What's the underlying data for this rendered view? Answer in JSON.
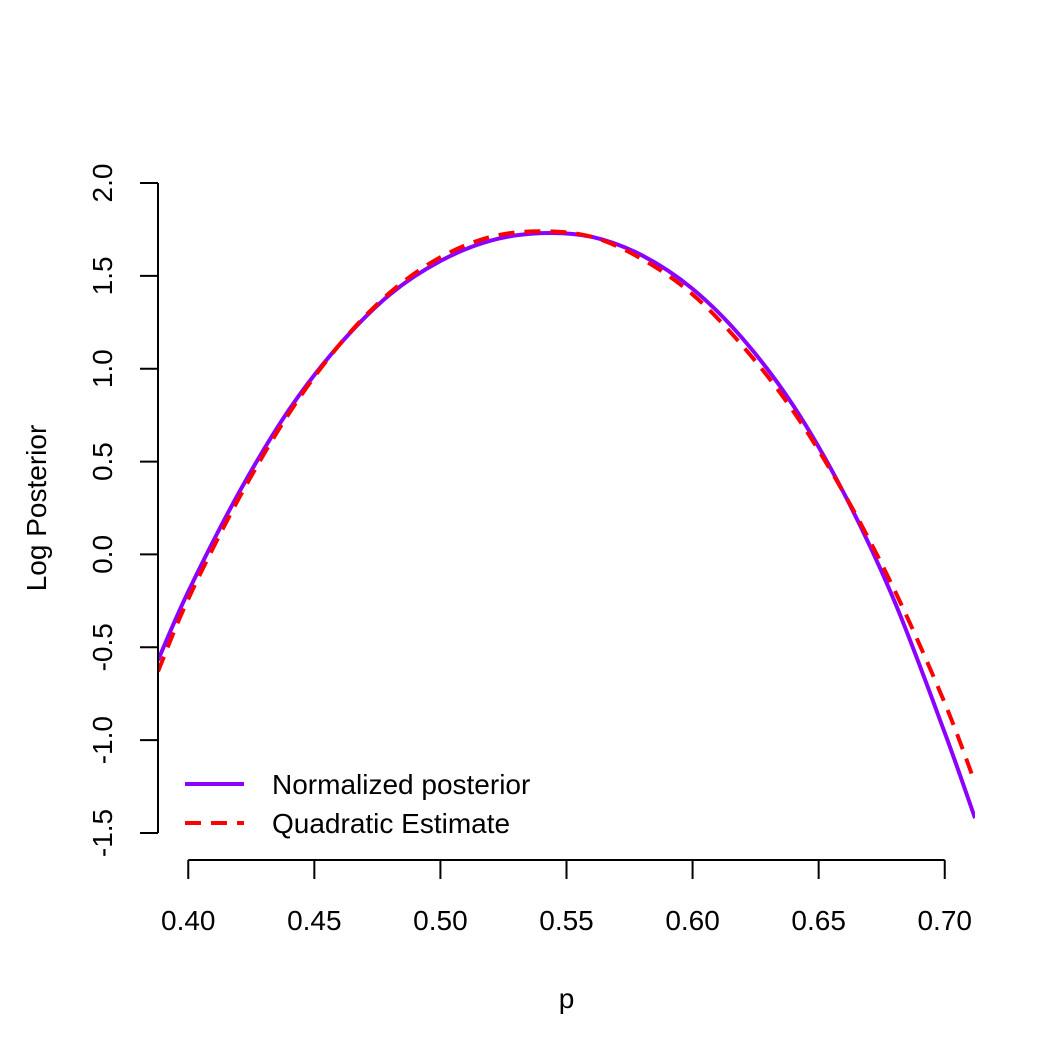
{
  "chart_data": {
    "type": "line",
    "title": "",
    "xlabel": "p",
    "ylabel": "Log Posterior",
    "xlim": [
      0.388,
      0.712
    ],
    "ylim": [
      -1.5,
      2.0
    ],
    "x_ticks": [
      0.4,
      0.45,
      0.5,
      0.55,
      0.6,
      0.65,
      0.7
    ],
    "x_tick_labels": [
      "0.40",
      "0.45",
      "0.50",
      "0.55",
      "0.60",
      "0.65",
      "0.70"
    ],
    "y_ticks": [
      -1.5,
      -1.0,
      -0.5,
      0.0,
      0.5,
      1.0,
      1.5,
      2.0
    ],
    "y_tick_labels": [
      "-1.5",
      "-1.0",
      "-0.5",
      "0.0",
      "0.5",
      "1.0",
      "1.5",
      "2.0"
    ],
    "grid": false,
    "legend": {
      "position": "bottom-left"
    },
    "series": [
      {
        "name": "Normalized posterior",
        "color": "#8B00FF",
        "style": "solid",
        "x": [
          0.388,
          0.4,
          0.42,
          0.44,
          0.46,
          0.48,
          0.5,
          0.52,
          0.54,
          0.56,
          0.58,
          0.6,
          0.62,
          0.64,
          0.66,
          0.68,
          0.7,
          0.712
        ],
        "y": [
          -0.57,
          -0.2,
          0.33,
          0.78,
          1.13,
          1.4,
          1.58,
          1.69,
          1.73,
          1.71,
          1.61,
          1.43,
          1.16,
          0.8,
          0.33,
          -0.25,
          -0.96,
          -1.42
        ]
      },
      {
        "name": "Quadratic Estimate",
        "color": "#FF0000",
        "style": "dashed",
        "x": [
          0.388,
          0.4,
          0.42,
          0.44,
          0.46,
          0.48,
          0.5,
          0.52,
          0.54,
          0.56,
          0.58,
          0.6,
          0.62,
          0.64,
          0.66,
          0.68,
          0.7,
          0.712
        ],
        "y": [
          -0.63,
          -0.24,
          0.3,
          0.76,
          1.13,
          1.41,
          1.6,
          1.71,
          1.74,
          1.71,
          1.59,
          1.4,
          1.12,
          0.77,
          0.33,
          -0.19,
          -0.8,
          -1.23
        ]
      }
    ]
  }
}
